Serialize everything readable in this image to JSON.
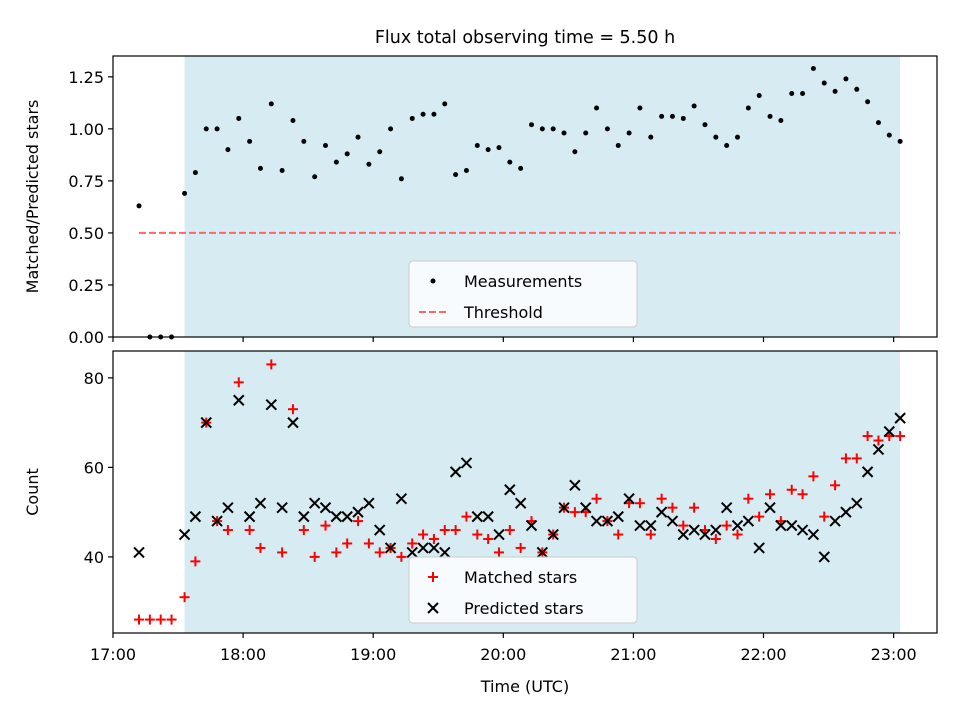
{
  "title": "Flux total observing time = 5.50 h",
  "colors": {
    "shade": "#add8e6",
    "measurements": "#000000",
    "threshold": "#ff6666",
    "matched": "#ff0000",
    "predicted": "#000000",
    "axis": "#000000"
  },
  "chart_data": [
    {
      "type": "scatter",
      "title": "Flux total observing time = 5.50 h",
      "xlabel": "",
      "ylabel": "Matched/Predicted stars",
      "xlim": [
        "17:00",
        "23:20"
      ],
      "ylim": [
        0,
        1.35
      ],
      "yticks": [
        0.0,
        0.25,
        0.5,
        0.75,
        1.0,
        1.25
      ],
      "ytick_labels": [
        "0.00",
        "0.25",
        "0.50",
        "0.75",
        "1.00",
        "1.25"
      ],
      "shaded_span": [
        "17:33",
        "23:03"
      ],
      "legend": {
        "placement": "lower center",
        "entries": [
          "Measurements",
          "Threshold"
        ]
      },
      "series": [
        {
          "name": "Measurements",
          "kind": "points",
          "points": [
            [
              "17:12",
              0.63
            ],
            [
              "17:17",
              0.0
            ],
            [
              "17:22",
              0.0
            ],
            [
              "17:27",
              0.0
            ],
            [
              "17:33",
              0.69
            ],
            [
              "17:38",
              0.79
            ],
            [
              "17:43",
              1.0
            ],
            [
              "17:48",
              1.0
            ],
            [
              "17:53",
              0.9
            ],
            [
              "17:58",
              1.05
            ],
            [
              "18:03",
              0.94
            ],
            [
              "18:08",
              0.81
            ],
            [
              "18:13",
              1.12
            ],
            [
              "18:18",
              0.8
            ],
            [
              "18:23",
              1.04
            ],
            [
              "18:28",
              0.94
            ],
            [
              "18:33",
              0.77
            ],
            [
              "18:38",
              0.92
            ],
            [
              "18:43",
              0.84
            ],
            [
              "18:48",
              0.88
            ],
            [
              "18:53",
              0.96
            ],
            [
              "18:58",
              0.83
            ],
            [
              "19:03",
              0.89
            ],
            [
              "19:08",
              1.0
            ],
            [
              "19:13",
              0.76
            ],
            [
              "19:18",
              1.05
            ],
            [
              "19:23",
              1.07
            ],
            [
              "19:28",
              1.07
            ],
            [
              "19:33",
              1.12
            ],
            [
              "19:38",
              0.78
            ],
            [
              "19:43",
              0.8
            ],
            [
              "19:48",
              0.92
            ],
            [
              "19:53",
              0.9
            ],
            [
              "19:58",
              0.91
            ],
            [
              "20:03",
              0.84
            ],
            [
              "20:08",
              0.81
            ],
            [
              "20:13",
              1.02
            ],
            [
              "20:18",
              1.0
            ],
            [
              "20:23",
              1.0
            ],
            [
              "20:28",
              0.98
            ],
            [
              "20:33",
              0.89
            ],
            [
              "20:38",
              0.98
            ],
            [
              "20:43",
              1.1
            ],
            [
              "20:48",
              1.0
            ],
            [
              "20:53",
              0.92
            ],
            [
              "20:58",
              0.98
            ],
            [
              "21:03",
              1.1
            ],
            [
              "21:08",
              0.96
            ],
            [
              "21:13",
              1.06
            ],
            [
              "21:18",
              1.06
            ],
            [
              "21:23",
              1.05
            ],
            [
              "21:28",
              1.11
            ],
            [
              "21:33",
              1.02
            ],
            [
              "21:38",
              0.96
            ],
            [
              "21:43",
              0.92
            ],
            [
              "21:48",
              0.96
            ],
            [
              "21:53",
              1.1
            ],
            [
              "21:58",
              1.16
            ],
            [
              "22:03",
              1.06
            ],
            [
              "22:08",
              1.04
            ],
            [
              "22:13",
              1.17
            ],
            [
              "22:18",
              1.17
            ],
            [
              "22:23",
              1.29
            ],
            [
              "22:28",
              1.22
            ],
            [
              "22:33",
              1.18
            ],
            [
              "22:38",
              1.24
            ],
            [
              "22:43",
              1.19
            ],
            [
              "22:48",
              1.13
            ],
            [
              "22:53",
              1.03
            ],
            [
              "22:58",
              0.97
            ],
            [
              "23:03",
              0.94
            ]
          ]
        },
        {
          "name": "Threshold",
          "kind": "dashed-line",
          "points": [
            [
              "17:12",
              0.5
            ],
            [
              "23:03",
              0.5
            ]
          ]
        }
      ]
    },
    {
      "type": "scatter",
      "title": "",
      "xlabel": "Time (UTC)",
      "ylabel": "Count",
      "xlim": [
        "17:00",
        "23:20"
      ],
      "ylim": [
        23,
        86
      ],
      "yticks": [
        40,
        60,
        80
      ],
      "ytick_labels": [
        "40",
        "60",
        "80"
      ],
      "xticks": [
        "17:00",
        "18:00",
        "19:00",
        "20:00",
        "21:00",
        "22:00",
        "23:00"
      ],
      "xtick_labels": [
        "17:00",
        "18:00",
        "19:00",
        "20:00",
        "21:00",
        "22:00",
        "23:00"
      ],
      "shaded_span": [
        "17:33",
        "23:03"
      ],
      "legend": {
        "placement": "lower center",
        "entries": [
          "Matched stars",
          "Predicted stars"
        ]
      },
      "series": [
        {
          "name": "Matched stars",
          "kind": "plus",
          "points": [
            [
              "17:12",
              26
            ],
            [
              "17:17",
              26
            ],
            [
              "17:22",
              26
            ],
            [
              "17:27",
              26
            ],
            [
              "17:33",
              31
            ],
            [
              "17:38",
              39
            ],
            [
              "17:43",
              70
            ],
            [
              "17:48",
              48
            ],
            [
              "17:53",
              46
            ],
            [
              "17:58",
              79
            ],
            [
              "18:03",
              46
            ],
            [
              "18:08",
              42
            ],
            [
              "18:13",
              83
            ],
            [
              "18:18",
              41
            ],
            [
              "18:23",
              73
            ],
            [
              "18:28",
              46
            ],
            [
              "18:33",
              40
            ],
            [
              "18:38",
              47
            ],
            [
              "18:43",
              41
            ],
            [
              "18:48",
              43
            ],
            [
              "18:53",
              48
            ],
            [
              "18:58",
              43
            ],
            [
              "19:03",
              41
            ],
            [
              "19:08",
              42
            ],
            [
              "19:13",
              40
            ],
            [
              "19:18",
              43
            ],
            [
              "19:23",
              45
            ],
            [
              "19:28",
              44
            ],
            [
              "19:33",
              46
            ],
            [
              "19:38",
              46
            ],
            [
              "19:43",
              49
            ],
            [
              "19:48",
              45
            ],
            [
              "19:53",
              44
            ],
            [
              "19:58",
              41
            ],
            [
              "20:03",
              46
            ],
            [
              "20:08",
              42
            ],
            [
              "20:13",
              48
            ],
            [
              "20:18",
              41
            ],
            [
              "20:23",
              45
            ],
            [
              "20:28",
              51
            ],
            [
              "20:33",
              50
            ],
            [
              "20:38",
              50
            ],
            [
              "20:43",
              53
            ],
            [
              "20:48",
              48
            ],
            [
              "20:53",
              45
            ],
            [
              "20:58",
              52
            ],
            [
              "21:03",
              52
            ],
            [
              "21:08",
              45
            ],
            [
              "21:13",
              53
            ],
            [
              "21:18",
              51
            ],
            [
              "21:23",
              47
            ],
            [
              "21:28",
              51
            ],
            [
              "21:33",
              46
            ],
            [
              "21:38",
              44
            ],
            [
              "21:43",
              47
            ],
            [
              "21:48",
              45
            ],
            [
              "21:53",
              53
            ],
            [
              "21:58",
              49
            ],
            [
              "22:03",
              54
            ],
            [
              "22:08",
              48
            ],
            [
              "22:13",
              55
            ],
            [
              "22:18",
              54
            ],
            [
              "22:23",
              58
            ],
            [
              "22:28",
              49
            ],
            [
              "22:33",
              56
            ],
            [
              "22:38",
              62
            ],
            [
              "22:43",
              62
            ],
            [
              "22:48",
              67
            ],
            [
              "22:53",
              66
            ],
            [
              "22:58",
              67
            ],
            [
              "23:03",
              67
            ]
          ]
        },
        {
          "name": "Predicted stars",
          "kind": "x",
          "points": [
            [
              "17:12",
              41
            ],
            [
              "17:33",
              45
            ],
            [
              "17:38",
              49
            ],
            [
              "17:43",
              70
            ],
            [
              "17:48",
              48
            ],
            [
              "17:53",
              51
            ],
            [
              "17:58",
              75
            ],
            [
              "18:03",
              49
            ],
            [
              "18:08",
              52
            ],
            [
              "18:13",
              74
            ],
            [
              "18:18",
              51
            ],
            [
              "18:23",
              70
            ],
            [
              "18:28",
              49
            ],
            [
              "18:33",
              52
            ],
            [
              "18:38",
              51
            ],
            [
              "18:43",
              49
            ],
            [
              "18:48",
              49
            ],
            [
              "18:53",
              50
            ],
            [
              "18:58",
              52
            ],
            [
              "19:03",
              46
            ],
            [
              "19:08",
              42
            ],
            [
              "19:13",
              53
            ],
            [
              "19:18",
              41
            ],
            [
              "19:23",
              42
            ],
            [
              "19:28",
              42
            ],
            [
              "19:33",
              41
            ],
            [
              "19:38",
              59
            ],
            [
              "19:43",
              61
            ],
            [
              "19:48",
              49
            ],
            [
              "19:53",
              49
            ],
            [
              "19:58",
              45
            ],
            [
              "20:03",
              55
            ],
            [
              "20:08",
              52
            ],
            [
              "20:13",
              47
            ],
            [
              "20:18",
              41
            ],
            [
              "20:23",
              45
            ],
            [
              "20:28",
              51
            ],
            [
              "20:33",
              56
            ],
            [
              "20:38",
              51
            ],
            [
              "20:43",
              48
            ],
            [
              "20:48",
              48
            ],
            [
              "20:53",
              49
            ],
            [
              "20:58",
              53
            ],
            [
              "21:03",
              47
            ],
            [
              "21:08",
              47
            ],
            [
              "21:13",
              50
            ],
            [
              "21:18",
              48
            ],
            [
              "21:23",
              45
            ],
            [
              "21:28",
              46
            ],
            [
              "21:33",
              45
            ],
            [
              "21:38",
              46
            ],
            [
              "21:43",
              51
            ],
            [
              "21:48",
              47
            ],
            [
              "21:53",
              48
            ],
            [
              "21:58",
              42
            ],
            [
              "22:03",
              51
            ],
            [
              "22:08",
              47
            ],
            [
              "22:13",
              47
            ],
            [
              "22:18",
              46
            ],
            [
              "22:23",
              45
            ],
            [
              "22:28",
              40
            ],
            [
              "22:33",
              48
            ],
            [
              "22:38",
              50
            ],
            [
              "22:43",
              52
            ],
            [
              "22:48",
              59
            ],
            [
              "22:53",
              64
            ],
            [
              "22:58",
              68
            ],
            [
              "23:03",
              71
            ]
          ]
        }
      ]
    }
  ]
}
